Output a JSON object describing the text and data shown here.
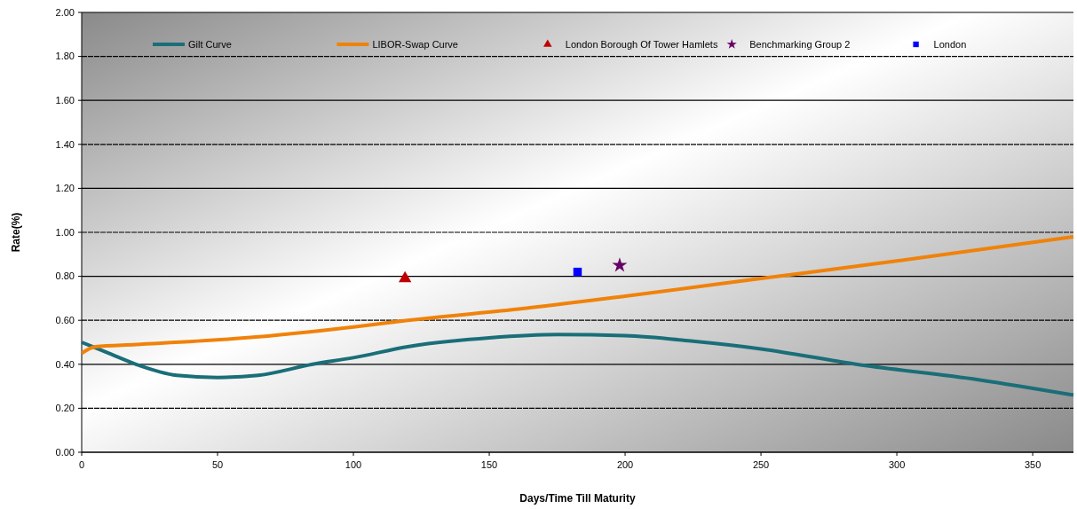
{
  "chart_data": {
    "type": "line",
    "xlabel": "Days/Time Till Maturity",
    "ylabel": "Rate(%)",
    "xlim": [
      0,
      365
    ],
    "xticks": [
      0,
      50,
      100,
      150,
      200,
      250,
      300,
      350
    ],
    "ylim": [
      0,
      2
    ],
    "yticks": [
      {
        "value": 0,
        "label": "0.00"
      },
      {
        "value": 0.2,
        "label": "0.20"
      },
      {
        "value": 0.4,
        "label": "0.40"
      },
      {
        "value": 0.6,
        "label": "0.60"
      },
      {
        "value": 0.8,
        "label": "0.80"
      },
      {
        "value": 1,
        "label": "1.00"
      },
      {
        "value": 1.2,
        "label": "1.20"
      },
      {
        "value": 1.4,
        "label": "1.40"
      },
      {
        "value": 1.6,
        "label": "1.60"
      },
      {
        "value": 1.8,
        "label": "1.80"
      },
      {
        "value": 2,
        "label": "2.00"
      }
    ],
    "grid": "y",
    "legend": "top",
    "series": [
      {
        "name": "Gilt Curve",
        "color": "#1a6e78",
        "x": [
          0,
          10,
          20,
          35,
          50,
          65,
          85,
          100,
          120,
          150,
          175,
          200,
          225,
          250,
          285,
          330,
          365
        ],
        "values": [
          0.5,
          0.45,
          0.4,
          0.35,
          0.34,
          0.35,
          0.4,
          0.43,
          0.48,
          0.52,
          0.535,
          0.53,
          0.505,
          0.47,
          0.4,
          0.33,
          0.26
        ]
      },
      {
        "name": "LIBOR-Swap Curve",
        "color": "#f0820a",
        "x": [
          0,
          5,
          20,
          60,
          100,
          120,
          160,
          200,
          250,
          300,
          365
        ],
        "values": [
          0.45,
          0.48,
          0.49,
          0.52,
          0.57,
          0.6,
          0.65,
          0.71,
          0.79,
          0.87,
          0.98
        ]
      },
      {
        "name": "London Borough Of Tower Hamlets",
        "type": "scatter",
        "marker": "triangle",
        "color": "#c00000",
        "x": [
          119
        ],
        "values": [
          0.79
        ]
      },
      {
        "name": "Benchmarking Group 2",
        "type": "scatter",
        "marker": "star",
        "color": "#660066",
        "x": [
          198
        ],
        "values": [
          0.85
        ]
      },
      {
        "name": "London",
        "type": "scatter",
        "marker": "square",
        "color": "#0000ff",
        "x": [
          182.5
        ],
        "values": [
          0.82
        ]
      }
    ]
  }
}
